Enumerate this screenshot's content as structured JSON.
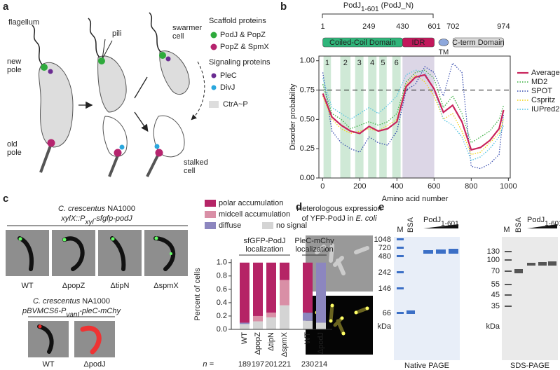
{
  "panel_labels": [
    "a",
    "b",
    "c",
    "d",
    "e"
  ],
  "panel_a": {
    "flagellum": "flagellum",
    "new_pole": [
      "new",
      "pole"
    ],
    "old_pole": [
      "old",
      "pole"
    ],
    "pili": "pili",
    "swarmer_cell": [
      "swarmer",
      "cell"
    ],
    "stalked_cell": [
      "stalked",
      "cell"
    ],
    "legend": {
      "scaffold": "Scaffold proteins",
      "podj_popz": "PodJ & PopZ",
      "popz_spmx": "PopZ & SpmX",
      "signaling": "Signaling proteins",
      "plec": "PleC",
      "divj": "DivJ",
      "ctrap": "CtrA~P"
    }
  },
  "chart_data": [
    {
      "type": "line",
      "title": {
        "main": "PodJ",
        "sub": "1-601",
        "rest": " (PodJ_N)"
      },
      "ruler": [
        1,
        249,
        430,
        601,
        702,
        974
      ],
      "domains": [
        {
          "label": "Coiled-Coil Domain",
          "color": "#2fb57a"
        },
        {
          "label": "IDR",
          "color": "#c2185b"
        },
        {
          "label": "TM",
          "color": "#8ea8dc"
        },
        {
          "label": "C-term Domain",
          "color": "#d9d9d9"
        }
      ],
      "bands": [
        {
          "label": "1",
          "range": [
            5,
            45
          ]
        },
        {
          "label": "2",
          "range": [
            95,
            150
          ]
        },
        {
          "label": "3",
          "range": [
            175,
            220
          ]
        },
        {
          "label": "4",
          "range": [
            245,
            290
          ]
        },
        {
          "label": "5",
          "range": [
            305,
            345
          ]
        },
        {
          "label": "6",
          "range": [
            375,
            420
          ]
        }
      ],
      "band_color": "#cfe9d6",
      "idr_shade": "#dcd6e6",
      "threshold": 0.75,
      "x_label": "Amino acid number",
      "y_label": "Disorder probability",
      "x": [
        1,
        50,
        100,
        150,
        200,
        250,
        300,
        350,
        400,
        450,
        500,
        550,
        600,
        650,
        700,
        750,
        800,
        850,
        900,
        950,
        974
      ],
      "series": [
        {
          "name": "Average",
          "color": "#c9245c",
          "style": "solid",
          "values": [
            0.72,
            0.52,
            0.45,
            0.4,
            0.38,
            0.44,
            0.4,
            0.42,
            0.48,
            0.78,
            0.86,
            0.88,
            0.76,
            0.56,
            0.62,
            0.48,
            0.24,
            0.26,
            0.32,
            0.42,
            0.58
          ]
        },
        {
          "name": "MD2",
          "color": "#3cb043",
          "style": "dotted",
          "values": [
            0.8,
            0.55,
            0.5,
            0.42,
            0.45,
            0.48,
            0.45,
            0.48,
            0.55,
            0.82,
            0.9,
            0.92,
            0.85,
            0.6,
            0.7,
            0.55,
            0.3,
            0.35,
            0.4,
            0.5,
            0.62
          ]
        },
        {
          "name": "SPOT",
          "color": "#3a4fb0",
          "style": "dotted",
          "values": [
            0.9,
            0.4,
            0.3,
            0.25,
            0.22,
            0.35,
            0.3,
            0.28,
            0.4,
            0.75,
            0.8,
            0.95,
            0.9,
            0.7,
            0.98,
            0.9,
            0.1,
            0.08,
            0.12,
            0.2,
            0.55
          ]
        },
        {
          "name": "Cspritz",
          "color": "#f2d516",
          "style": "dotted",
          "values": [
            0.7,
            0.5,
            0.42,
            0.38,
            0.4,
            0.42,
            0.4,
            0.45,
            0.5,
            0.8,
            0.88,
            0.82,
            0.7,
            0.5,
            0.55,
            0.4,
            0.2,
            0.22,
            0.3,
            0.38,
            0.5
          ]
        },
        {
          "name": "IUPred2",
          "color": "#52c3e0",
          "style": "dotted",
          "values": [
            0.85,
            0.6,
            0.55,
            0.5,
            0.55,
            0.6,
            0.55,
            0.62,
            0.7,
            0.88,
            0.92,
            0.9,
            0.75,
            0.5,
            0.45,
            0.35,
            0.15,
            0.18,
            0.25,
            0.35,
            0.45
          ]
        }
      ],
      "xlim": [
        -20,
        1010
      ],
      "ylim": [
        0,
        1.04
      ],
      "xticks": [
        0,
        200,
        400,
        600,
        800,
        1000
      ],
      "yticks": [
        {
          "value": 0,
          "label": "0.00"
        },
        {
          "value": 0.25,
          "label": "0.25"
        },
        {
          "value": 0.5,
          "label": "0.50"
        },
        {
          "value": 0.75,
          "label": "0.75"
        },
        {
          "value": 1,
          "label": "1.00"
        }
      ],
      "legend": "right"
    },
    {
      "type": "stacked_bar",
      "groups": [
        {
          "label": [
            "sfGFP-PodJ",
            "localization"
          ],
          "categories": [
            "WT",
            "ΔpopZ",
            "ΔtipN",
            "ΔspmX"
          ]
        },
        {
          "label": [
            "PleC-mChy",
            "localization"
          ],
          "categories": [
            "WT",
            "ΔpodJ"
          ]
        }
      ],
      "series": [
        {
          "name": "no signal",
          "color": "#d4d4d4",
          "values": [
            0.08,
            0.12,
            0.18,
            0.36,
            0.13,
            0.1
          ]
        },
        {
          "name": "diffuse",
          "color": "#8c86bf",
          "values": [
            0.02,
            0,
            0,
            0,
            0.12,
            0.9
          ]
        },
        {
          "name": "midcell accumulation",
          "color": "#d98fa6",
          "values": [
            0,
            0.08,
            0.07,
            0.38,
            0,
            0
          ]
        },
        {
          "name": "polar accumulation",
          "color": "#b52466",
          "values": [
            0.9,
            0.8,
            0.75,
            0.26,
            0.75,
            0
          ]
        }
      ],
      "y_label": "Percent of cells",
      "n_label": "n =",
      "n": [
        189,
        197,
        201,
        221,
        230,
        214
      ],
      "ylim": [
        0,
        1.05
      ],
      "yticks": [
        {
          "value": 0,
          "label": "0.0"
        },
        {
          "value": 0.2,
          "label": "0.2"
        },
        {
          "value": 0.4,
          "label": "0.4"
        },
        {
          "value": 0.6,
          "label": "0.6"
        },
        {
          "value": 0.8,
          "label": "0.8"
        },
        {
          "value": 1,
          "label": "1.0"
        }
      ]
    }
  ],
  "panel_c": {
    "header1": {
      "species": "C. crescentus",
      "strain": " NA1000",
      "genotype": [
        "xylX::P",
        "xyl",
        "-sfgfp-podJ"
      ]
    },
    "strains1": [
      "WT",
      "ΔpopZ",
      "ΔtipN",
      "ΔspmX"
    ],
    "header2": {
      "species": "C. crescentus",
      "strain": " NA1000",
      "genotype": [
        "pBVMCS6-P",
        "vanI",
        "-pleC-mChy"
      ]
    },
    "strains2": [
      "WT",
      "ΔpodJ"
    ]
  },
  "panel_d": {
    "title": [
      "Heterologous expression",
      "of YFP-PodJ in ",
      "E. coli"
    ]
  },
  "panel_e": {
    "lanes": {
      "m": "M",
      "bsa": "BSA",
      "podj": {
        "main": "PodJ",
        "sub": "1-601"
      }
    },
    "native_ladder": [
      1048,
      720,
      480,
      242,
      146,
      66
    ],
    "sds_ladder": [
      130,
      100,
      70,
      55,
      45,
      35
    ],
    "unit": "kDa",
    "native_title": "Native PAGE",
    "sds_title": "SDS-PAGE"
  }
}
